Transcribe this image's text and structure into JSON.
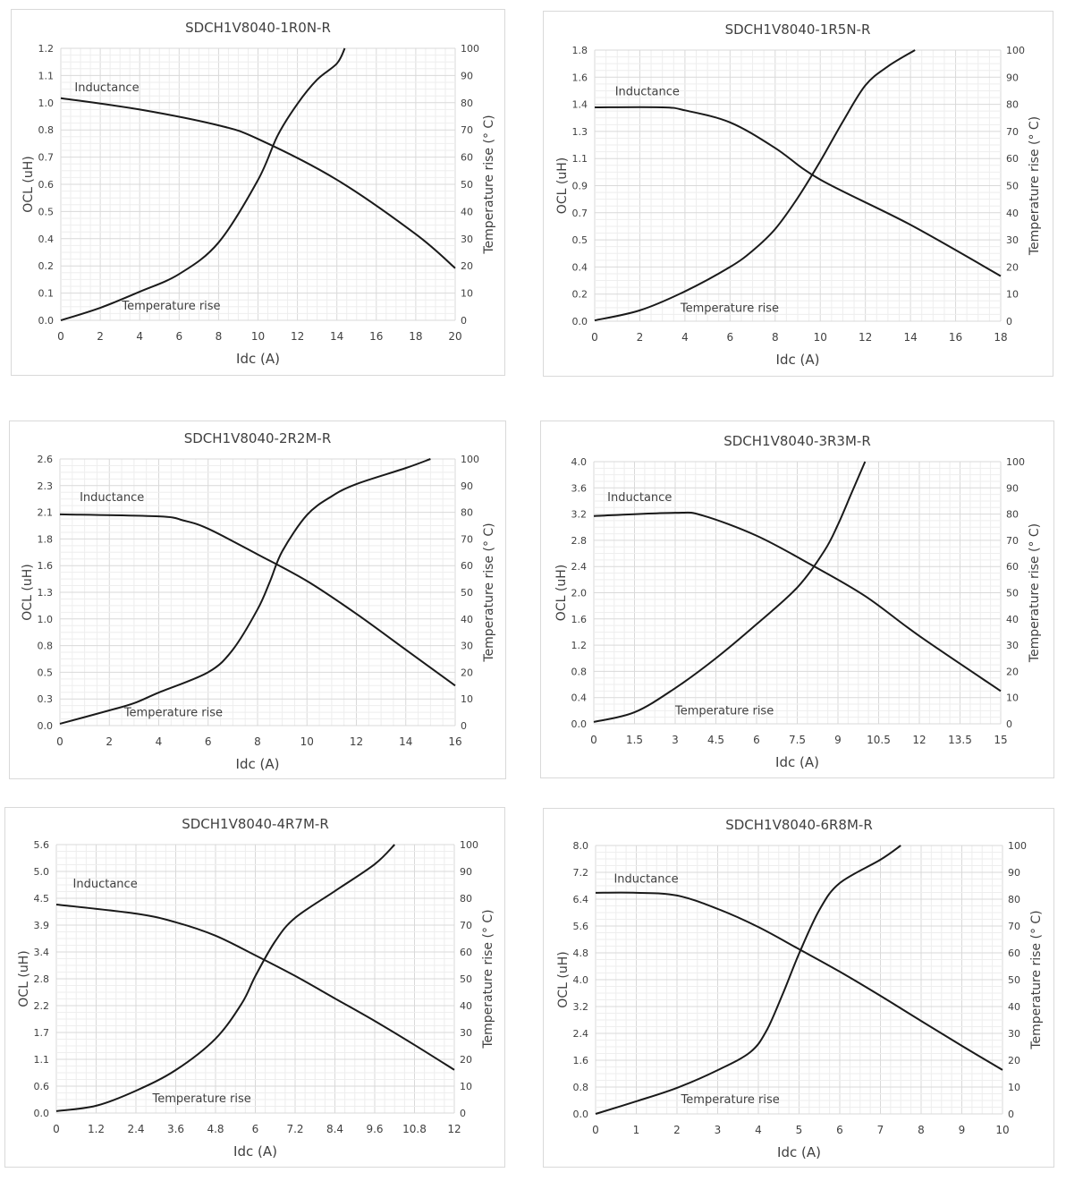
{
  "chart_data": [
    {
      "type": "line",
      "title": "SDCH1V8040-1R0N-R",
      "xlabel": "Idc (A)",
      "ylabel": "OCL (uH)",
      "y2label": "Temperature rise (° C)",
      "xlim": [
        0,
        20
      ],
      "xticks": [
        "0",
        "2",
        "4",
        "6",
        "8",
        "10",
        "12",
        "14",
        "16",
        "18",
        "20"
      ],
      "ylim": [
        0,
        1.2
      ],
      "yticks": [
        "0.0",
        "0.1",
        "0.2",
        "0.4",
        "0.5",
        "0.6",
        "0.7",
        "0.8",
        "1.0",
        "1.1",
        "1.2"
      ],
      "y2lim": [
        0,
        100
      ],
      "y2ticks": [
        "0",
        "10",
        "20",
        "30",
        "40",
        "50",
        "60",
        "70",
        "80",
        "90",
        "100"
      ],
      "grid": true,
      "series": [
        {
          "name": "Inductance",
          "axis": "left",
          "label_at": [
            0.7,
            1.01
          ],
          "x": [
            0,
            4,
            8,
            10,
            14,
            18,
            20
          ],
          "y": [
            0.98,
            0.93,
            0.86,
            0.8,
            0.62,
            0.38,
            0.23
          ]
        },
        {
          "name": "Temperature rise",
          "axis": "right",
          "label_at": [
            3.1,
            4
          ],
          "x": [
            0,
            2,
            4,
            6,
            8,
            10,
            11,
            12,
            13,
            14,
            14.4
          ],
          "y": [
            0,
            4.6,
            10.5,
            17,
            28.6,
            51.6,
            68,
            79.6,
            88.5,
            94.4,
            100
          ]
        }
      ]
    },
    {
      "type": "line",
      "title": "SDCH1V8040-1R5N-R",
      "xlabel": "Idc (A)",
      "ylabel": "OCL (uH)",
      "y2label": "Temperature rise (° C)",
      "xlim": [
        0,
        18
      ],
      "xticks": [
        "0",
        "2",
        "4",
        "6",
        "8",
        "10",
        "12",
        "14",
        "16",
        "18"
      ],
      "ylim": [
        0,
        1.8
      ],
      "yticks": [
        "0.0",
        "0.2",
        "0.4",
        "0.5",
        "0.7",
        "0.9",
        "1.1",
        "1.3",
        "1.4",
        "1.6",
        "1.8"
      ],
      "y2lim": [
        0,
        100
      ],
      "y2ticks": [
        "0",
        "10",
        "20",
        "30",
        "40",
        "50",
        "60",
        "70",
        "80",
        "90",
        "100"
      ],
      "grid": true,
      "series": [
        {
          "name": "Inductance",
          "axis": "left",
          "label_at": [
            0.9,
            1.5
          ],
          "x": [
            0,
            3,
            4,
            6,
            8,
            10,
            14,
            18
          ],
          "y": [
            1.42,
            1.42,
            1.4,
            1.32,
            1.15,
            0.94,
            0.64,
            0.3
          ]
        },
        {
          "name": "Temperature rise",
          "axis": "right",
          "label_at": [
            3.8,
            3.5
          ],
          "x": [
            0,
            2,
            4,
            6,
            7,
            8,
            9,
            10,
            11,
            12,
            13,
            14.2
          ],
          "y": [
            0.3,
            4,
            11,
            20,
            26,
            34,
            45.5,
            59,
            73.6,
            87,
            94,
            100
          ]
        }
      ]
    },
    {
      "type": "line",
      "title": "SDCH1V8040-2R2M-R",
      "xlabel": "Idc (A)",
      "ylabel": "OCL (uH)",
      "y2label": "Temperature rise (° C)",
      "xlim": [
        0,
        16
      ],
      "xticks": [
        "0",
        "2",
        "4",
        "6",
        "8",
        "10",
        "12",
        "14",
        "16"
      ],
      "ylim": [
        0,
        2.6
      ],
      "yticks": [
        "0.0",
        "0.3",
        "0.5",
        "0.8",
        "1.0",
        "1.3",
        "1.6",
        "1.8",
        "2.1",
        "2.3",
        "2.6"
      ],
      "y2lim": [
        0,
        100
      ],
      "y2ticks": [
        "0",
        "10",
        "20",
        "30",
        "40",
        "50",
        "60",
        "70",
        "80",
        "90",
        "100"
      ],
      "grid": true,
      "series": [
        {
          "name": "Inductance",
          "axis": "left",
          "label_at": [
            0.8,
            2.19
          ],
          "x": [
            0,
            4,
            5,
            6,
            8,
            10,
            12,
            14,
            16
          ],
          "y": [
            2.06,
            2.04,
            2.0,
            1.92,
            1.67,
            1.41,
            1.09,
            0.74,
            0.39
          ]
        },
        {
          "name": "Temperature rise",
          "axis": "right",
          "label_at": [
            2.6,
            3.5
          ],
          "x": [
            0,
            2,
            3,
            4,
            6,
            7,
            8,
            8.5,
            9,
            10,
            11,
            12,
            14,
            15
          ],
          "y": [
            0.7,
            5.7,
            8.4,
            12.4,
            20,
            28.5,
            43.6,
            54,
            65.4,
            79,
            86,
            90.6,
            96.6,
            100
          ]
        }
      ]
    },
    {
      "type": "line",
      "title": "SDCH1V8040-3R3M-R",
      "xlabel": "Idc (A)",
      "ylabel": "OCL (uH)",
      "y2label": "Temperature rise (° C)",
      "xlim": [
        0,
        15
      ],
      "xticks": [
        "0",
        "1.5",
        "3",
        "4.5",
        "6",
        "7.5",
        "9",
        "10.5",
        "12",
        "13.5",
        "15"
      ],
      "ylim": [
        0,
        4.0
      ],
      "yticks": [
        "0.0",
        "0.4",
        "0.8",
        "1.2",
        "1.6",
        "2.0",
        "2.4",
        "2.8",
        "3.2",
        "3.6",
        "4.0"
      ],
      "y2lim": [
        0,
        100
      ],
      "y2ticks": [
        "0",
        "10",
        "20",
        "30",
        "40",
        "50",
        "60",
        "70",
        "80",
        "90",
        "100"
      ],
      "grid": true,
      "series": [
        {
          "name": "Inductance",
          "axis": "left",
          "label_at": [
            0.5,
            3.4
          ],
          "x": [
            0,
            3,
            4,
            6,
            8,
            10,
            12,
            15
          ],
          "y": [
            3.17,
            3.22,
            3.18,
            2.87,
            2.43,
            1.95,
            1.34,
            0.5
          ]
        },
        {
          "name": "Temperature rise",
          "axis": "right",
          "label_at": [
            3,
            3.5
          ],
          "x": [
            0,
            1.5,
            3,
            4.5,
            6,
            7.5,
            8.5,
            9,
            9.5,
            10
          ],
          "y": [
            0.7,
            4.4,
            13.6,
            25,
            38,
            52,
            66,
            76,
            88,
            100
          ]
        }
      ]
    },
    {
      "type": "line",
      "title": "SDCH1V8040-4R7M-R",
      "xlabel": "Idc (A)",
      "ylabel": "OCL (uH)",
      "y2label": "Temperature rise (° C)",
      "xlim": [
        0,
        12
      ],
      "xticks": [
        "0",
        "1.2",
        "2.4",
        "3.6",
        "4.8",
        "6",
        "7.2",
        "8.4",
        "9.6",
        "10.8",
        "12"
      ],
      "ylim": [
        0,
        5.6
      ],
      "yticks": [
        "0.0",
        "0.6",
        "1.1",
        "1.7",
        "2.2",
        "2.8",
        "3.4",
        "3.9",
        "4.5",
        "5.0",
        "5.6"
      ],
      "y2lim": [
        0,
        100
      ],
      "y2ticks": [
        "0",
        "10",
        "20",
        "30",
        "40",
        "50",
        "60",
        "70",
        "80",
        "90",
        "100"
      ],
      "grid": true,
      "series": [
        {
          "name": "Inductance",
          "axis": "left",
          "label_at": [
            0.5,
            4.7
          ],
          "x": [
            0,
            2.4,
            3.6,
            4.8,
            6,
            7.2,
            8.4,
            9.6,
            10.8,
            12
          ],
          "y": [
            4.35,
            4.16,
            3.98,
            3.7,
            3.29,
            2.86,
            2.39,
            1.92,
            1.42,
            0.9
          ]
        },
        {
          "name": "Temperature rise",
          "axis": "right",
          "label_at": [
            2.9,
            4
          ],
          "x": [
            0,
            1.2,
            2.4,
            3.6,
            4.8,
            5.6,
            6,
            6.6,
            7.2,
            8.4,
            9.6,
            10.2
          ],
          "y": [
            0.7,
            2.7,
            8.3,
            16,
            27.7,
            41,
            51,
            64,
            72.7,
            82.7,
            92.7,
            100
          ]
        }
      ]
    },
    {
      "type": "line",
      "title": "SDCH1V8040-6R8M-R",
      "xlabel": "Idc (A)",
      "ylabel": "OCL (uH)",
      "y2label": "Temperature rise (° C)",
      "xlim": [
        0,
        10
      ],
      "xticks": [
        "0",
        "1",
        "2",
        "3",
        "4",
        "5",
        "6",
        "7",
        "8",
        "9",
        "10"
      ],
      "ylim": [
        0,
        8.0
      ],
      "yticks": [
        "0.0",
        "0.8",
        "1.6",
        "2.4",
        "3.2",
        "4.0",
        "4.8",
        "5.6",
        "6.4",
        "7.2",
        "8.0"
      ],
      "y2lim": [
        0,
        100
      ],
      "y2ticks": [
        "0",
        "10",
        "20",
        "30",
        "40",
        "50",
        "60",
        "70",
        "80",
        "90",
        "100"
      ],
      "grid": true,
      "series": [
        {
          "name": "Inductance",
          "axis": "left",
          "label_at": [
            0.45,
            6.9
          ],
          "x": [
            0,
            1,
            2,
            3,
            4,
            5,
            6,
            7,
            8,
            9,
            10
          ],
          "y": [
            6.59,
            6.59,
            6.51,
            6.11,
            5.57,
            4.91,
            4.24,
            3.52,
            2.77,
            2.03,
            1.31
          ]
        },
        {
          "name": "Temperature rise",
          "axis": "right",
          "label_at": [
            2.1,
            4
          ],
          "x": [
            0,
            1,
            2,
            3,
            3.8,
            4.2,
            4.6,
            5,
            5.5,
            6,
            7,
            7.5
          ],
          "y": [
            0,
            4.7,
            9.7,
            16.3,
            23,
            31,
            44.7,
            59.7,
            76,
            86,
            94.7,
            100
          ]
        }
      ]
    }
  ]
}
